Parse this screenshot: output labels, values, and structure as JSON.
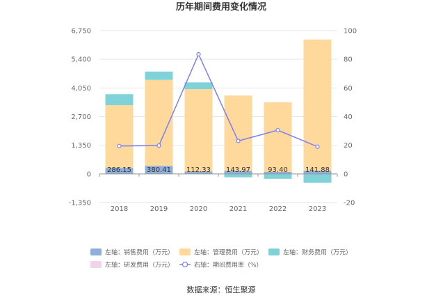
{
  "chart_data": {
    "type": "bar",
    "title": "历年期间费用变化情况",
    "categories": [
      "2018",
      "2019",
      "2020",
      "2021",
      "2022",
      "2023"
    ],
    "left_axis": {
      "ticks": [
        "6,750",
        "5,400",
        "4,050",
        "2,700",
        "1,350",
        "0",
        "-1,350"
      ],
      "ylim": [
        -1350,
        6750
      ]
    },
    "right_axis": {
      "ticks": [
        "100",
        "80",
        "60",
        "40",
        "20",
        "0",
        "-20"
      ],
      "ylim": [
        -20,
        100
      ]
    },
    "series": [
      {
        "name": "左轴：销售费用（万元）",
        "kind": "bar",
        "axis": "left",
        "color": "#8fafd9",
        "values": [
          286.15,
          380.41,
          112.33,
          143.97,
          93.4,
          141.88
        ],
        "labels": [
          "286.15",
          "380.41",
          "112.33",
          "143.97",
          "93.40",
          "141.88"
        ]
      },
      {
        "name": "左轴：管理费用（万元）",
        "kind": "bar",
        "axis": "left",
        "color": "#ffd99b",
        "values": [
          2950,
          4050,
          3880,
          3550,
          3280,
          6190
        ]
      },
      {
        "name": "左轴：财务费用（万元）",
        "kind": "bar",
        "axis": "left",
        "color": "#7fd3d8",
        "values": [
          520,
          390,
          320,
          -160,
          -230,
          -420
        ]
      },
      {
        "name": "左轴：研发费用（万元）",
        "kind": "bar",
        "axis": "left",
        "color": "#f3d3ea",
        "values": [
          0,
          0,
          0,
          0,
          0,
          0
        ]
      },
      {
        "name": "右轴：期间费用率（%）",
        "kind": "line",
        "axis": "right",
        "color": "#7b7ff0",
        "values": [
          19.5,
          19.8,
          83.5,
          23,
          30.5,
          19
        ]
      }
    ],
    "legend_position": "bottom",
    "grid": true
  },
  "source_text": "数据来源：恒生聚源"
}
